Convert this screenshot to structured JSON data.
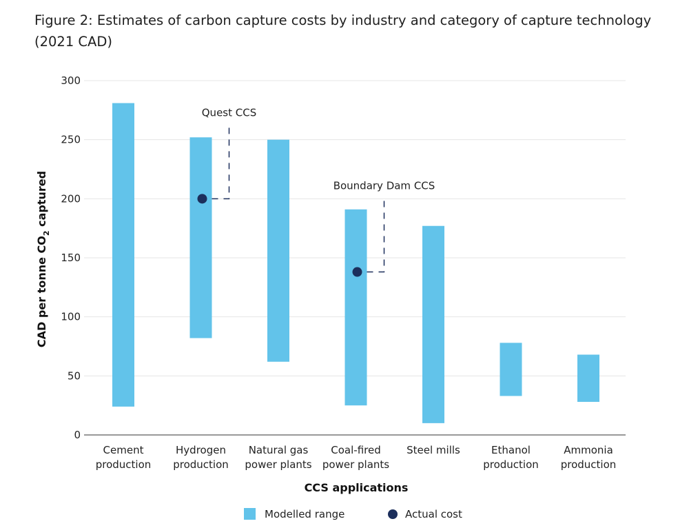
{
  "figure": {
    "title": "Figure 2: Estimates of carbon capture costs by industry and category of capture technology (2021 CAD)"
  },
  "colors": {
    "range": "#62c3ea",
    "actual": "#1c2f5c",
    "grid": "#e4e4e4"
  },
  "chart_data": {
    "type": "range-bar",
    "title": "Figure 2: Estimates of carbon capture costs by industry and category of capture technology (2021 CAD)",
    "xlabel": "CCS applications",
    "ylabel": "CAD per tonne CO₂ captured",
    "ylabel_parts": {
      "main": "CAD per tonne CO",
      "sub": "2",
      "tail": " captured"
    },
    "ylim": [
      0,
      300
    ],
    "yticks": [
      0,
      50,
      100,
      150,
      200,
      250,
      300
    ],
    "grid": true,
    "legend_placement": "bottom-center",
    "categories": [
      [
        "Cement",
        "production"
      ],
      [
        "Hydrogen",
        "production"
      ],
      [
        "Natural gas",
        "power plants"
      ],
      [
        "Coal-fired",
        "power plants"
      ],
      [
        "Steel mills"
      ],
      [
        "Ethanol",
        "production"
      ],
      [
        "Ammonia",
        "production"
      ]
    ],
    "series": [
      {
        "name": "Modelled range",
        "low": [
          24,
          82,
          62,
          25,
          10,
          33,
          28
        ],
        "high": [
          281,
          252,
          250,
          191,
          177,
          78,
          68
        ]
      },
      {
        "name": "Actual cost",
        "points": [
          {
            "category_index": 1,
            "value": 200,
            "label": "Quest CCS",
            "label_at": 270
          },
          {
            "category_index": 3,
            "value": 138,
            "label": "Boundary Dam CCS",
            "label_at": 208
          }
        ]
      }
    ]
  }
}
